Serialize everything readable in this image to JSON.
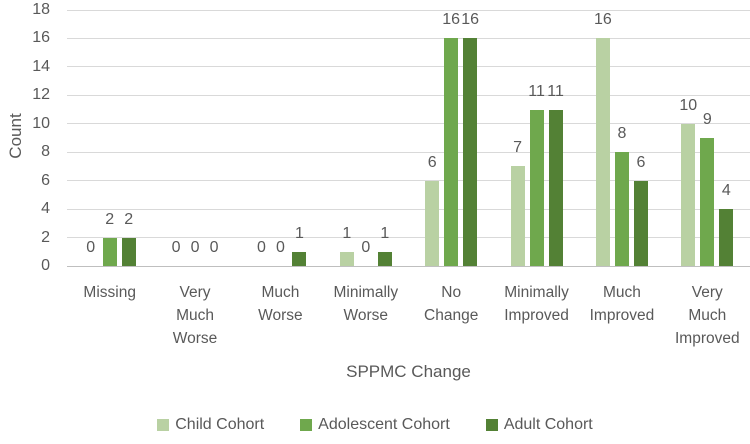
{
  "chart_data": {
    "type": "bar",
    "title": "",
    "xlabel": "SPPMC Change",
    "ylabel": "Count",
    "ylim": [
      0,
      18
    ],
    "ytick_step": 2,
    "grid": true,
    "data_labels": true,
    "legend_position": "bottom",
    "categories": [
      "Missing",
      "Very Much Worse",
      "Much Worse",
      "Minimally Worse",
      "No Change",
      "Minimally Improved",
      "Much Improved",
      "Very Much Improved"
    ],
    "series": [
      {
        "name": "Child Cohort",
        "color": "#b9d1a3",
        "values": [
          0,
          0,
          0,
          1,
          6,
          7,
          16,
          10
        ]
      },
      {
        "name": "Adolescent Cohort",
        "color": "#6fa84d",
        "values": [
          2,
          0,
          0,
          0,
          16,
          11,
          8,
          9
        ]
      },
      {
        "name": "Adult Cohort",
        "color": "#538135",
        "values": [
          2,
          0,
          1,
          1,
          16,
          11,
          6,
          4
        ]
      }
    ],
    "colors": {
      "gridline": "#d9d9d9",
      "axis_line": "#bfbfbf",
      "text": "#595959",
      "background": "#ffffff"
    }
  }
}
